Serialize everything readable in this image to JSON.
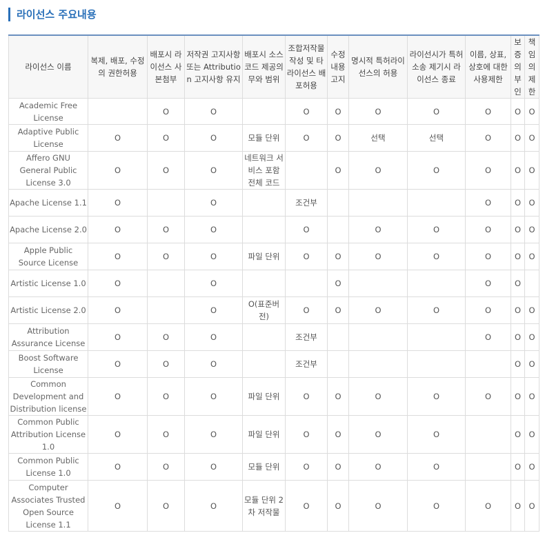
{
  "page": {
    "title": "라이선스 주요내용"
  },
  "table": {
    "columns": [
      "라이선스 이름",
      "복제, 배포, 수정의 권한허용",
      "배포시 라이선스 사본첨부",
      "저작권 고지사항 또는 Attribution 고지사항 유지",
      "배포시 소스코드 제공의무와 범위",
      "조합저작물 작성 및 타 라이선스 배포허용",
      "수정 내용 고지",
      "명시적 특허라이선스의 허용",
      "라이선시가 특허소송 제기시 라이선스 종료",
      "이름, 상표, 상호에 대한 사용제한",
      "보증의 부인",
      "책임의 제한"
    ],
    "rows": [
      [
        "Academic Free License",
        "",
        "O",
        "O",
        "",
        "O",
        "O",
        "O",
        "O",
        "O",
        "O",
        "O"
      ],
      [
        "Adaptive Public License",
        "O",
        "O",
        "O",
        "모듈 단위",
        "O",
        "O",
        "선택",
        "선택",
        "O",
        "O",
        "O"
      ],
      [
        "Affero GNU General Public License 3.0",
        "O",
        "O",
        "O",
        "네트워크 서비스 포함 전체 코드",
        "",
        "O",
        "O",
        "O",
        "O",
        "O",
        "O"
      ],
      [
        "Apache License 1.1",
        "O",
        "",
        "O",
        "",
        "조건부",
        "",
        "",
        "",
        "O",
        "O",
        "O"
      ],
      [
        "Apache License 2.0",
        "O",
        "O",
        "O",
        "",
        "O",
        "",
        "O",
        "O",
        "O",
        "O",
        "O"
      ],
      [
        "Apple Public Source License",
        "O",
        "O",
        "O",
        "파일 단위",
        "O",
        "O",
        "O",
        "O",
        "O",
        "O",
        "O"
      ],
      [
        "Artistic License 1.0",
        "O",
        "",
        "O",
        "",
        "",
        "O",
        "",
        "",
        "O",
        "O",
        ""
      ],
      [
        "Artistic License 2.0",
        "O",
        "",
        "O",
        "O(표준버전)",
        "O",
        "O",
        "O",
        "O",
        "O",
        "O",
        "O"
      ],
      [
        "Attribution Assurance License",
        "O",
        "O",
        "O",
        "",
        "조건부",
        "",
        "",
        "",
        "O",
        "O",
        "O"
      ],
      [
        "Boost Software License",
        "O",
        "O",
        "O",
        "",
        "조건부",
        "",
        "",
        "",
        "",
        "O",
        "O"
      ],
      [
        "Common Development and Distribution license",
        "O",
        "O",
        "O",
        "파일 단위",
        "O",
        "O",
        "O",
        "O",
        "O",
        "O",
        "O"
      ],
      [
        "Common Public Attribution License 1.0",
        "O",
        "O",
        "O",
        "파일 단위",
        "O",
        "O",
        "O",
        "O",
        "",
        "O",
        "O"
      ],
      [
        "Common Public License 1.0",
        "O",
        "O",
        "O",
        "모듈 단위",
        "O",
        "O",
        "O",
        "O",
        "",
        "O",
        "O"
      ],
      [
        "Computer Associates Trusted Open Source License 1.1",
        "O",
        "O",
        "O",
        "모듈 단위 2차 저작물",
        "O",
        "O",
        "O",
        "O",
        "O",
        "O",
        "O"
      ]
    ]
  }
}
